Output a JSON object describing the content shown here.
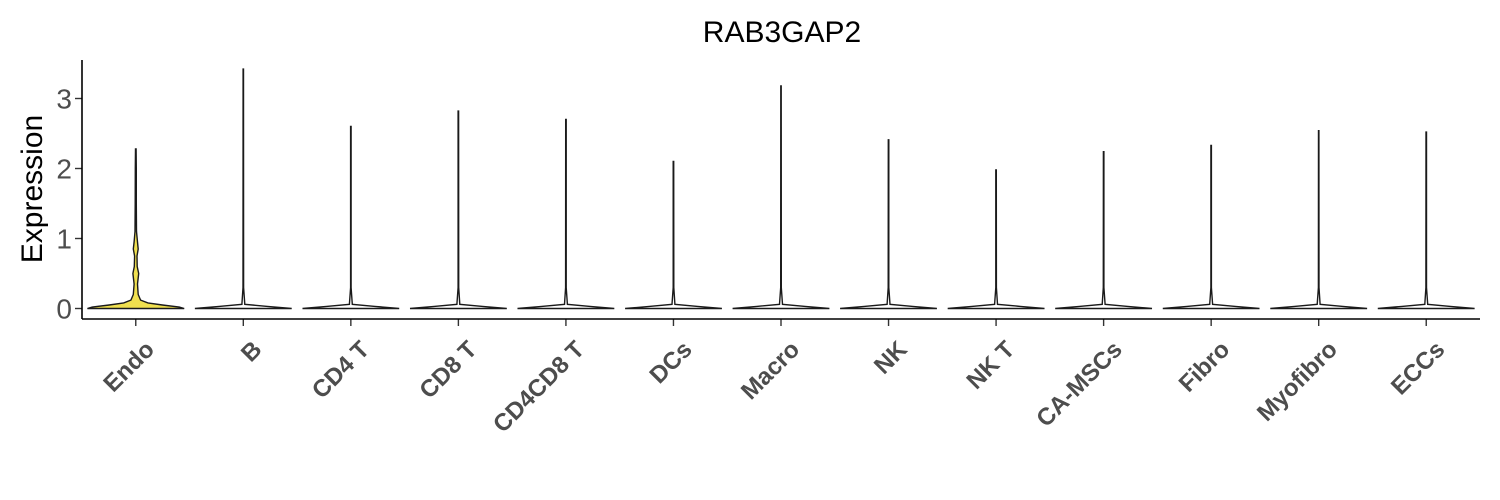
{
  "chart_data": {
    "type": "violin",
    "title": "RAB3GAP2",
    "xlabel": "",
    "ylabel": "Expression",
    "ylim": [
      -0.15,
      3.55
    ],
    "yticks": [
      "0",
      "1",
      "2",
      "3"
    ],
    "grid": false,
    "legend": "none",
    "categories": [
      "Endo",
      "B",
      "CD4 T",
      "CD8 T",
      "CD4CD8 T",
      "DCs",
      "Macro",
      "NK",
      "NK T",
      "CA-MSCs",
      "Fibro",
      "Myofibro",
      "ECCs"
    ],
    "max_values": [
      2.28,
      3.42,
      2.6,
      2.82,
      2.7,
      2.1,
      3.18,
      2.41,
      1.98,
      2.24,
      2.33,
      2.54,
      2.52
    ],
    "fill_colors": [
      "#f0e04f",
      "#ffffff",
      "#ffffff",
      "#ffffff",
      "#ffffff",
      "#ffffff",
      "#ffffff",
      "#ffffff",
      "#ffffff",
      "#ffffff",
      "#ffffff",
      "#ffffff",
      "#ffffff"
    ],
    "density_profiles": [
      [
        [
          0,
          1.0
        ],
        [
          0.02,
          0.9
        ],
        [
          0.05,
          0.55
        ],
        [
          0.08,
          0.25
        ],
        [
          0.12,
          0.1
        ],
        [
          0.2,
          0.05
        ],
        [
          0.35,
          0.035
        ],
        [
          0.5,
          0.06
        ],
        [
          0.6,
          0.03
        ],
        [
          0.75,
          0.025
        ],
        [
          0.85,
          0.05
        ],
        [
          0.95,
          0.035
        ],
        [
          1.1,
          0.015
        ],
        [
          1.5,
          0.012
        ],
        [
          2.0,
          0.01
        ],
        [
          2.28,
          0.006
        ]
      ],
      [
        [
          0,
          1.0
        ],
        [
          0.03,
          0.5
        ],
        [
          0.06,
          0.03
        ],
        [
          0.3,
          0.006
        ],
        [
          3.42,
          0.005
        ]
      ],
      [
        [
          0,
          1.0
        ],
        [
          0.03,
          0.5
        ],
        [
          0.06,
          0.03
        ],
        [
          0.3,
          0.006
        ],
        [
          2.6,
          0.005
        ]
      ],
      [
        [
          0,
          1.0
        ],
        [
          0.03,
          0.5
        ],
        [
          0.06,
          0.03
        ],
        [
          0.3,
          0.006
        ],
        [
          2.82,
          0.005
        ]
      ],
      [
        [
          0,
          1.0
        ],
        [
          0.03,
          0.5
        ],
        [
          0.06,
          0.03
        ],
        [
          0.3,
          0.006
        ],
        [
          2.7,
          0.005
        ]
      ],
      [
        [
          0,
          1.0
        ],
        [
          0.03,
          0.5
        ],
        [
          0.06,
          0.03
        ],
        [
          0.3,
          0.006
        ],
        [
          2.1,
          0.005
        ]
      ],
      [
        [
          0,
          1.0
        ],
        [
          0.03,
          0.5
        ],
        [
          0.06,
          0.03
        ],
        [
          0.3,
          0.006
        ],
        [
          3.18,
          0.005
        ]
      ],
      [
        [
          0,
          1.0
        ],
        [
          0.03,
          0.5
        ],
        [
          0.06,
          0.03
        ],
        [
          0.3,
          0.006
        ],
        [
          2.41,
          0.005
        ]
      ],
      [
        [
          0,
          1.0
        ],
        [
          0.03,
          0.5
        ],
        [
          0.06,
          0.03
        ],
        [
          0.3,
          0.006
        ],
        [
          1.98,
          0.005
        ]
      ],
      [
        [
          0,
          1.0
        ],
        [
          0.03,
          0.5
        ],
        [
          0.06,
          0.03
        ],
        [
          0.3,
          0.006
        ],
        [
          2.24,
          0.005
        ]
      ],
      [
        [
          0,
          1.0
        ],
        [
          0.03,
          0.5
        ],
        [
          0.06,
          0.03
        ],
        [
          0.3,
          0.006
        ],
        [
          2.33,
          0.005
        ]
      ],
      [
        [
          0,
          1.0
        ],
        [
          0.03,
          0.5
        ],
        [
          0.06,
          0.03
        ],
        [
          0.3,
          0.006
        ],
        [
          2.54,
          0.005
        ]
      ],
      [
        [
          0,
          1.0
        ],
        [
          0.03,
          0.5
        ],
        [
          0.06,
          0.03
        ],
        [
          0.3,
          0.006
        ],
        [
          2.52,
          0.005
        ]
      ]
    ]
  }
}
